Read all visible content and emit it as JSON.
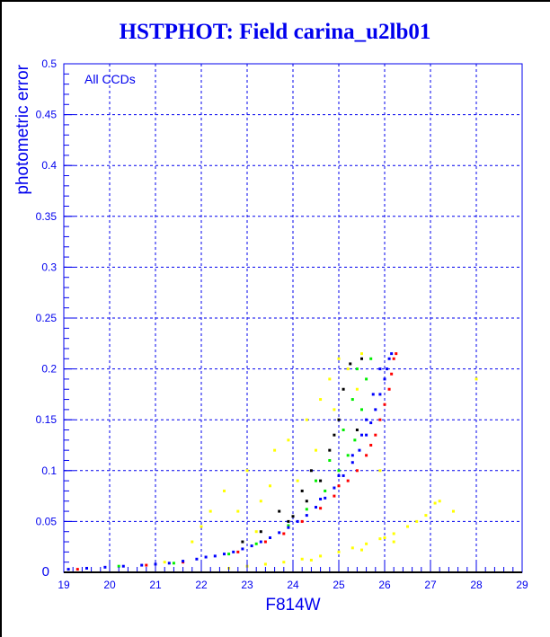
{
  "chart_data": {
    "type": "scatter",
    "title": "HSTPHOT: Field carina_u2lb01",
    "xlabel": "F814W",
    "ylabel": "photometric error",
    "annotation": "All CCDs",
    "xlim": [
      19,
      29
    ],
    "ylim": [
      0,
      0.5
    ],
    "grid": true,
    "x_ticks": [
      "19",
      "20",
      "21",
      "22",
      "23",
      "24",
      "25",
      "26",
      "27",
      "28",
      "29"
    ],
    "y_ticks": [
      "0",
      "0.05",
      "0.1",
      "0.15",
      "0.2",
      "0.25",
      "0.3",
      "0.35",
      "0.4",
      "0.45",
      "0.5"
    ],
    "series": [
      {
        "name": "yellow",
        "color": "#ffff00",
        "points": [
          [
            21.2,
            0.01
          ],
          [
            21.8,
            0.03
          ],
          [
            22.2,
            0.06
          ],
          [
            22.5,
            0.08
          ],
          [
            22.8,
            0.06
          ],
          [
            23.0,
            0.1
          ],
          [
            23.2,
            0.04
          ],
          [
            23.5,
            0.085
          ],
          [
            23.6,
            0.12
          ],
          [
            23.9,
            0.13
          ],
          [
            24.1,
            0.09
          ],
          [
            24.3,
            0.15
          ],
          [
            24.6,
            0.17
          ],
          [
            24.8,
            0.19
          ],
          [
            25.0,
            0.21
          ],
          [
            25.2,
            0.2
          ],
          [
            25.4,
            0.18
          ],
          [
            25.5,
            0.215
          ],
          [
            24.9,
            0.16
          ],
          [
            24.5,
            0.12
          ],
          [
            22.0,
            0.045
          ],
          [
            23.3,
            0.07
          ],
          [
            27.5,
            0.06
          ],
          [
            28.0,
            0.19
          ],
          [
            27.2,
            0.07
          ],
          [
            26.2,
            0.03
          ],
          [
            25.9,
            0.1
          ],
          [
            22.6,
            0.004
          ],
          [
            23.0,
            0.006
          ],
          [
            23.4,
            0.008
          ],
          [
            23.8,
            0.01
          ],
          [
            24.2,
            0.013
          ],
          [
            24.6,
            0.016
          ],
          [
            25.0,
            0.02
          ],
          [
            25.3,
            0.024
          ],
          [
            25.6,
            0.028
          ],
          [
            25.9,
            0.033
          ],
          [
            26.2,
            0.038
          ],
          [
            26.5,
            0.045
          ],
          [
            26.7,
            0.05
          ],
          [
            26.9,
            0.056
          ],
          [
            27.1,
            0.068
          ],
          [
            26.0,
            0.034
          ],
          [
            25.5,
            0.022
          ],
          [
            24.4,
            0.012
          ]
        ]
      },
      {
        "name": "black",
        "color": "#000000",
        "points": [
          [
            22.9,
            0.03
          ],
          [
            23.3,
            0.04
          ],
          [
            23.7,
            0.06
          ],
          [
            24.0,
            0.055
          ],
          [
            24.2,
            0.08
          ],
          [
            24.4,
            0.1
          ],
          [
            24.6,
            0.09
          ],
          [
            24.8,
            0.12
          ],
          [
            25.0,
            0.15
          ],
          [
            25.1,
            0.18
          ],
          [
            25.25,
            0.205
          ],
          [
            25.4,
            0.14
          ],
          [
            24.3,
            0.07
          ],
          [
            23.9,
            0.05
          ],
          [
            25.5,
            0.21
          ],
          [
            24.9,
            0.135
          ]
        ]
      },
      {
        "name": "red",
        "color": "#ff0000",
        "points": [
          [
            19.3,
            0.003
          ],
          [
            20.8,
            0.007
          ],
          [
            21.6,
            0.01
          ],
          [
            22.8,
            0.02
          ],
          [
            23.4,
            0.03
          ],
          [
            23.8,
            0.038
          ],
          [
            24.2,
            0.05
          ],
          [
            24.6,
            0.063
          ],
          [
            24.9,
            0.075
          ],
          [
            25.2,
            0.09
          ],
          [
            25.4,
            0.1
          ],
          [
            25.6,
            0.115
          ],
          [
            25.8,
            0.135
          ],
          [
            25.9,
            0.15
          ],
          [
            26.0,
            0.165
          ],
          [
            26.1,
            0.18
          ],
          [
            26.15,
            0.195
          ],
          [
            26.2,
            0.21
          ],
          [
            26.25,
            0.215
          ],
          [
            25.0,
            0.085
          ],
          [
            25.7,
            0.125
          ]
        ]
      },
      {
        "name": "green",
        "color": "#00ee00",
        "points": [
          [
            20.2,
            0.006
          ],
          [
            21.4,
            0.009
          ],
          [
            22.6,
            0.018
          ],
          [
            23.2,
            0.028
          ],
          [
            23.9,
            0.046
          ],
          [
            24.3,
            0.062
          ],
          [
            24.7,
            0.08
          ],
          [
            25.0,
            0.1
          ],
          [
            25.2,
            0.115
          ],
          [
            25.35,
            0.13
          ],
          [
            25.5,
            0.16
          ],
          [
            25.6,
            0.19
          ],
          [
            25.4,
            0.2
          ],
          [
            25.1,
            0.14
          ],
          [
            24.8,
            0.11
          ],
          [
            24.5,
            0.09
          ],
          [
            25.7,
            0.21
          ],
          [
            25.3,
            0.17
          ]
        ]
      },
      {
        "name": "blue",
        "color": "#0000ff",
        "points": [
          [
            19.1,
            0.003
          ],
          [
            19.5,
            0.004
          ],
          [
            19.9,
            0.005
          ],
          [
            20.3,
            0.006
          ],
          [
            20.7,
            0.007
          ],
          [
            21.0,
            0.008
          ],
          [
            21.3,
            0.009
          ],
          [
            21.6,
            0.011
          ],
          [
            21.9,
            0.013
          ],
          [
            22.1,
            0.015
          ],
          [
            22.3,
            0.016
          ],
          [
            22.5,
            0.018
          ],
          [
            22.7,
            0.02
          ],
          [
            22.9,
            0.023
          ],
          [
            23.1,
            0.026
          ],
          [
            23.3,
            0.03
          ],
          [
            23.5,
            0.034
          ],
          [
            23.7,
            0.039
          ],
          [
            23.9,
            0.044
          ],
          [
            24.1,
            0.05
          ],
          [
            24.3,
            0.056
          ],
          [
            24.5,
            0.064
          ],
          [
            24.7,
            0.073
          ],
          [
            24.9,
            0.083
          ],
          [
            25.1,
            0.095
          ],
          [
            25.3,
            0.108
          ],
          [
            25.45,
            0.12
          ],
          [
            25.6,
            0.135
          ],
          [
            25.7,
            0.147
          ],
          [
            25.8,
            0.16
          ],
          [
            25.9,
            0.175
          ],
          [
            26.0,
            0.19
          ],
          [
            26.05,
            0.2
          ],
          [
            26.1,
            0.21
          ],
          [
            26.15,
            0.215
          ],
          [
            25.5,
            0.135
          ],
          [
            25.6,
            0.15
          ],
          [
            25.75,
            0.175
          ],
          [
            25.9,
            0.2
          ],
          [
            25.3,
            0.115
          ],
          [
            25.0,
            0.095
          ],
          [
            24.6,
            0.072
          ]
        ]
      }
    ]
  }
}
